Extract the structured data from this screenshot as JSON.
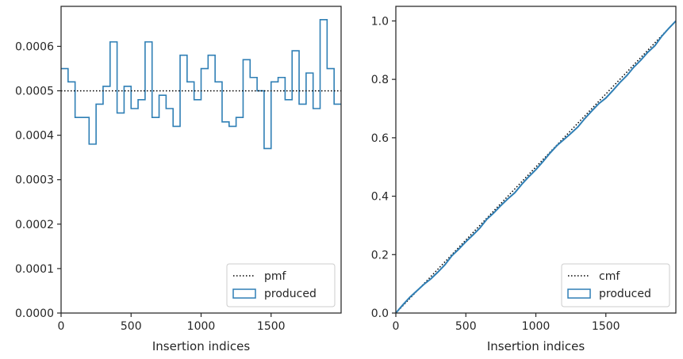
{
  "chart_data": [
    {
      "type": "histogram-step",
      "xlabel": "Insertion indices",
      "ylabel": "",
      "xlim": [
        0,
        2000
      ],
      "ylim": [
        0,
        0.00069
      ],
      "xticks": [
        0,
        500,
        1000,
        1500
      ],
      "xtick_labels": [
        "0",
        "500",
        "1000",
        "1500"
      ],
      "yticks": [
        0,
        0.0001,
        0.0002,
        0.0003,
        0.0004,
        0.0005,
        0.0006
      ],
      "ytick_labels": [
        "0.0000",
        "0.0001",
        "0.0002",
        "0.0003",
        "0.0004",
        "0.0005",
        "0.0006"
      ],
      "bin_width": 50,
      "series": [
        {
          "name": "produced",
          "style": "step",
          "color": "#2f7fb5",
          "bin_edges": [
            0,
            50,
            100,
            150,
            200,
            250,
            300,
            350,
            400,
            450,
            500,
            550,
            600,
            650,
            700,
            750,
            800,
            850,
            900,
            950,
            1000,
            1050,
            1100,
            1150,
            1200,
            1250,
            1300,
            1350,
            1400,
            1450,
            1500,
            1550,
            1600,
            1650,
            1700,
            1750,
            1800,
            1850,
            1900,
            1950,
            2000
          ],
          "values": [
            0.00055,
            0.00052,
            0.00044,
            0.00044,
            0.00038,
            0.00047,
            0.00051,
            0.00061,
            0.00045,
            0.00051,
            0.00046,
            0.00048,
            0.00061,
            0.00044,
            0.00049,
            0.00046,
            0.00042,
            0.00058,
            0.00052,
            0.00048,
            0.00055,
            0.00058,
            0.00052,
            0.00043,
            0.00042,
            0.00044,
            0.00057,
            0.00053,
            0.0005,
            0.00037,
            0.00052,
            0.00053,
            0.00048,
            0.00059,
            0.00047,
            0.00054,
            0.00046,
            0.00066,
            0.00055,
            0.00047
          ]
        },
        {
          "name": "pmf",
          "style": "dotted",
          "color": "#000000",
          "x": [
            0,
            2000
          ],
          "y": [
            0.0005,
            0.0005
          ]
        }
      ],
      "legend": {
        "position": "lower-right",
        "entries": [
          {
            "label": "pmf",
            "kind": "dotted-line"
          },
          {
            "label": "produced",
            "kind": "patch"
          }
        ]
      }
    },
    {
      "type": "line",
      "xlabel": "Insertion indices",
      "ylabel": "",
      "xlim": [
        0,
        2000
      ],
      "ylim": [
        0,
        1.05
      ],
      "xticks": [
        0,
        500,
        1000,
        1500
      ],
      "xtick_labels": [
        "0",
        "500",
        "1000",
        "1500"
      ],
      "yticks": [
        0,
        0.2,
        0.4,
        0.6,
        0.8,
        1.0
      ],
      "ytick_labels": [
        "0.0",
        "0.2",
        "0.4",
        "0.6",
        "0.8",
        "1.0"
      ],
      "series": [
        {
          "name": "cmf",
          "style": "dotted",
          "color": "#000000",
          "x": [
            0,
            2000
          ],
          "y": [
            0,
            1.0
          ]
        },
        {
          "name": "produced",
          "style": "solid",
          "color": "#2f7fb5",
          "x": [
            0,
            50,
            100,
            150,
            200,
            250,
            300,
            350,
            400,
            450,
            500,
            550,
            600,
            650,
            700,
            750,
            800,
            850,
            900,
            950,
            1000,
            1050,
            1100,
            1150,
            1200,
            1250,
            1300,
            1350,
            1400,
            1450,
            1500,
            1550,
            1600,
            1650,
            1700,
            1750,
            1800,
            1850,
            1900,
            1950,
            2000
          ],
          "y": [
            0,
            0.028,
            0.054,
            0.076,
            0.098,
            0.117,
            0.14,
            0.165,
            0.196,
            0.219,
            0.244,
            0.267,
            0.291,
            0.321,
            0.343,
            0.368,
            0.391,
            0.412,
            0.441,
            0.467,
            0.491,
            0.518,
            0.547,
            0.573,
            0.594,
            0.615,
            0.637,
            0.666,
            0.692,
            0.717,
            0.736,
            0.762,
            0.789,
            0.813,
            0.842,
            0.866,
            0.893,
            0.915,
            0.948,
            0.975,
            1.0
          ]
        }
      ],
      "legend": {
        "position": "lower-right",
        "entries": [
          {
            "label": "cmf",
            "kind": "dotted-line"
          },
          {
            "label": "produced",
            "kind": "patch"
          }
        ]
      }
    }
  ]
}
